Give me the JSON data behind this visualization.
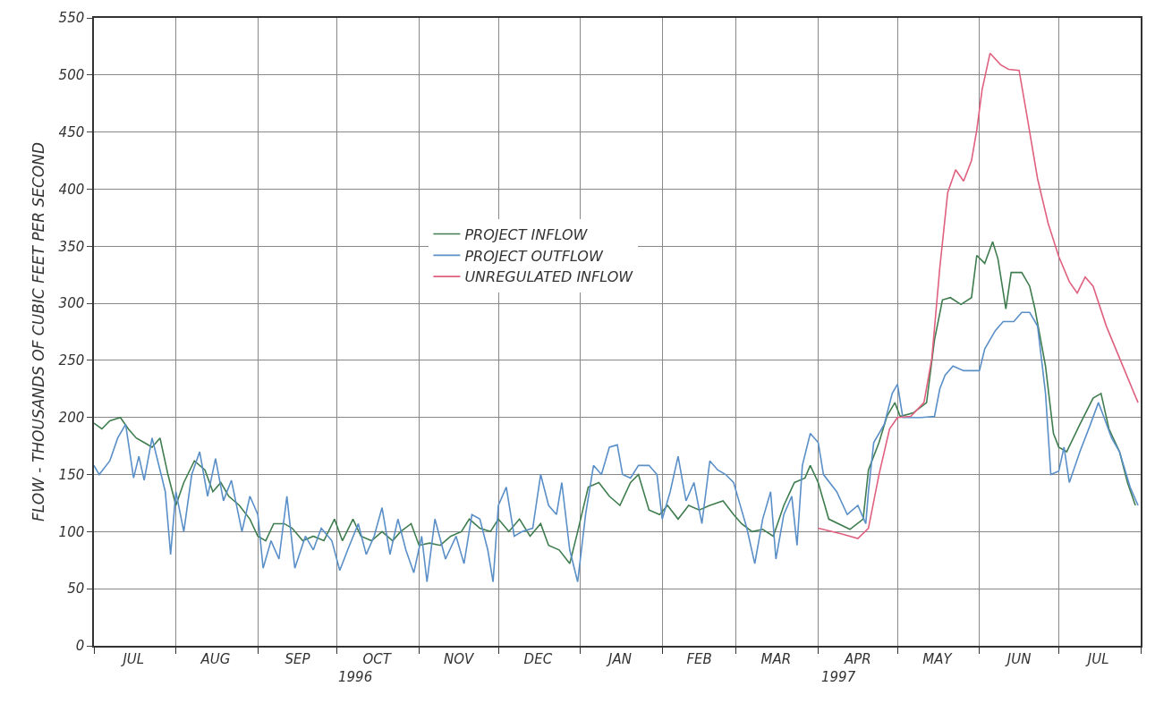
{
  "chart_data": {
    "type": "line",
    "ylabel": "FLOW - THOUSANDS OF CUBIC FEET PER SECOND",
    "xlim": [
      "1996-07-01",
      "1997-08-01"
    ],
    "ylim": [
      0,
      550
    ],
    "yticks": [
      0,
      50,
      100,
      150,
      200,
      250,
      300,
      350,
      400,
      450,
      500,
      550
    ],
    "xticks": [
      {
        "value": "1996-07-01",
        "label": null
      },
      {
        "value": "1996-07-16",
        "label": "JUL"
      },
      {
        "value": "1996-08-01",
        "label": null
      },
      {
        "value": "1996-08-16",
        "label": "AUG"
      },
      {
        "value": "1996-09-01",
        "label": null
      },
      {
        "value": "1996-09-16",
        "label": "SEP"
      },
      {
        "value": "1996-10-01",
        "label": null
      },
      {
        "value": "1996-10-16",
        "label": "OCT"
      },
      {
        "value": "1996-11-01",
        "label": null
      },
      {
        "value": "1996-11-16",
        "label": "NOV"
      },
      {
        "value": "1996-12-01",
        "label": null
      },
      {
        "value": "1996-12-16",
        "label": "DEC"
      },
      {
        "value": "1997-01-01",
        "label": null
      },
      {
        "value": "1997-01-16",
        "label": "JAN"
      },
      {
        "value": "1997-02-01",
        "label": null
      },
      {
        "value": "1997-02-15",
        "label": "FEB"
      },
      {
        "value": "1997-03-01",
        "label": null
      },
      {
        "value": "1997-03-16",
        "label": "MAR"
      },
      {
        "value": "1997-04-01",
        "label": null
      },
      {
        "value": "1997-04-16",
        "label": "APR"
      },
      {
        "value": "1997-05-01",
        "label": null
      },
      {
        "value": "1997-05-16",
        "label": "MAY"
      },
      {
        "value": "1997-06-01",
        "label": null
      },
      {
        "value": "1997-06-16",
        "label": "JUN"
      },
      {
        "value": "1997-07-01",
        "label": null
      },
      {
        "value": "1997-07-16",
        "label": "JUL"
      },
      {
        "value": "1997-08-01",
        "label": null
      }
    ],
    "annotations": [
      "1996",
      "1997"
    ],
    "grid": true,
    "legend": "center",
    "line_style": "solid",
    "marker": "none",
    "series": [
      {
        "name": "PROJECT INFLOW",
        "color": "#3f7d4f",
        "x": [
          "1996-07-01",
          "1996-07-04",
          "1996-07-07",
          "1996-07-11",
          "1996-07-14",
          "1996-07-17",
          "1996-07-20",
          "1996-07-23",
          "1996-07-26",
          "1996-07-29",
          "1996-08-01",
          "1996-08-04",
          "1996-08-08",
          "1996-08-12",
          "1996-08-15",
          "1996-08-18",
          "1996-08-21",
          "1996-08-25",
          "1996-08-29",
          "1996-09-01",
          "1996-09-04",
          "1996-09-07",
          "1996-09-11",
          "1996-09-14",
          "1996-09-18",
          "1996-09-22",
          "1996-09-26",
          "1996-09-30",
          "1996-10-03",
          "1996-10-07",
          "1996-10-10",
          "1996-10-14",
          "1996-10-18",
          "1996-10-22",
          "1996-10-25",
          "1996-10-29",
          "1996-11-01",
          "1996-11-05",
          "1996-11-09",
          "1996-11-13",
          "1996-11-17",
          "1996-11-20",
          "1996-11-24",
          "1996-11-28",
          "1996-12-01",
          "1996-12-05",
          "1996-12-09",
          "1996-12-13",
          "1996-12-17",
          "1996-12-20",
          "1996-12-24",
          "1996-12-28",
          "1996-12-31",
          "1997-01-04",
          "1997-01-08",
          "1997-01-12",
          "1997-01-16",
          "1997-01-20",
          "1997-01-23",
          "1997-01-27",
          "1997-01-31",
          "1997-02-03",
          "1997-02-07",
          "1997-02-11",
          "1997-02-15",
          "1997-02-19",
          "1997-02-24",
          "1997-02-28",
          "1997-03-03",
          "1997-03-07",
          "1997-03-11",
          "1997-03-15",
          "1997-03-19",
          "1997-03-23",
          "1997-03-27",
          "1997-03-29",
          "1997-04-01",
          "1997-04-05",
          "1997-04-13",
          "1997-04-18",
          "1997-04-20",
          "1997-04-24",
          "1997-04-27",
          "1997-04-30",
          "1997-05-02",
          "1997-05-07",
          "1997-05-12",
          "1997-05-15",
          "1997-05-18",
          "1997-05-21",
          "1997-05-25",
          "1997-05-29",
          "1997-05-31",
          "1997-06-03",
          "1997-06-06",
          "1997-06-08",
          "1997-06-11",
          "1997-06-13",
          "1997-06-17",
          "1997-06-20",
          "1997-06-22",
          "1997-06-26",
          "1997-06-29",
          "1997-07-01",
          "1997-07-04",
          "1997-07-09",
          "1997-07-14",
          "1997-07-17",
          "1997-07-20",
          "1997-07-24",
          "1997-07-27",
          "1997-07-30"
        ],
        "values": [
          195,
          190,
          197,
          200,
          190,
          182,
          178,
          174,
          182,
          150,
          123,
          143,
          162,
          154,
          135,
          143,
          131,
          123,
          111,
          96,
          92,
          107,
          107,
          103,
          92,
          96,
          92,
          111,
          92,
          111,
          96,
          92,
          100,
          92,
          100,
          107,
          88,
          90,
          88,
          96,
          100,
          111,
          103,
          100,
          111,
          100,
          111,
          96,
          107,
          88,
          84,
          72,
          100,
          139,
          143,
          131,
          123,
          143,
          150,
          119,
          115,
          123,
          111,
          123,
          119,
          123,
          127,
          115,
          107,
          100,
          102,
          96,
          123,
          143,
          147,
          158,
          143,
          111,
          102,
          111,
          154,
          178,
          201,
          213,
          201,
          204,
          213,
          268,
          303,
          305,
          299,
          305,
          342,
          335,
          354,
          339,
          295,
          327,
          327,
          315,
          295,
          245,
          186,
          174,
          170,
          194,
          217,
          221,
          190,
          170,
          143,
          123
        ]
      },
      {
        "name": "PROJECT OUTFLOW",
        "color": "#5a8fc8",
        "x": [
          "1996-07-01",
          "1996-07-03",
          "1996-07-07",
          "1996-07-10",
          "1996-07-13",
          "1996-07-16",
          "1996-07-18",
          "1996-07-20",
          "1996-07-23",
          "1996-07-26",
          "1996-07-28",
          "1996-07-30",
          "1996-08-01",
          "1996-08-04",
          "1996-08-07",
          "1996-08-10",
          "1996-08-13",
          "1996-08-16",
          "1996-08-19",
          "1996-08-22",
          "1996-08-26",
          "1996-08-29",
          "1996-09-01",
          "1996-09-03",
          "1996-09-06",
          "1996-09-09",
          "1996-09-12",
          "1996-09-15",
          "1996-09-19",
          "1996-09-22",
          "1996-09-25",
          "1996-09-29",
          "1996-10-02",
          "1996-10-05",
          "1996-10-09",
          "1996-10-12",
          "1996-10-15",
          "1996-10-18",
          "1996-10-21",
          "1996-10-24",
          "1996-10-27",
          "1996-10-30",
          "1996-11-02",
          "1996-11-04",
          "1996-11-07",
          "1996-11-11",
          "1996-11-15",
          "1996-11-18",
          "1996-11-21",
          "1996-11-24",
          "1996-11-27",
          "1996-11-29",
          "1996-12-01",
          "1996-12-04",
          "1996-12-07",
          "1996-12-10",
          "1996-12-14",
          "1996-12-17",
          "1996-12-20",
          "1996-12-23",
          "1996-12-25",
          "1996-12-28",
          "1996-12-31",
          "1997-01-03",
          "1997-01-06",
          "1997-01-09",
          "1997-01-12",
          "1997-01-15",
          "1997-01-17",
          "1997-01-20",
          "1997-01-23",
          "1997-01-27",
          "1997-01-30",
          "1997-02-01",
          "1997-02-04",
          "1997-02-07",
          "1997-02-10",
          "1997-02-13",
          "1997-02-16",
          "1997-02-19",
          "1997-02-22",
          "1997-02-25",
          "1997-02-28",
          "1997-03-02",
          "1997-03-05",
          "1997-03-08",
          "1997-03-11",
          "1997-03-14",
          "1997-03-16",
          "1997-03-19",
          "1997-03-22",
          "1997-03-24",
          "1997-03-26",
          "1997-03-29",
          "1997-04-01",
          "1997-04-03",
          "1997-04-08",
          "1997-04-12",
          "1997-04-16",
          "1997-04-19",
          "1997-04-20",
          "1997-04-22",
          "1997-04-26",
          "1997-04-29",
          "1997-05-01",
          "1997-05-03",
          "1997-05-10",
          "1997-05-15",
          "1997-05-17",
          "1997-05-19",
          "1997-05-22",
          "1997-05-26",
          "1997-06-01",
          "1997-06-03",
          "1997-06-07",
          "1997-06-10",
          "1997-06-14",
          "1997-06-17",
          "1997-06-20",
          "1997-06-23",
          "1997-06-26",
          "1997-06-28",
          "1997-07-01",
          "1997-07-03",
          "1997-07-05",
          "1997-07-09",
          "1997-07-13",
          "1997-07-16",
          "1997-07-18",
          "1997-07-21",
          "1997-07-24",
          "1997-07-28",
          "1997-07-31"
        ],
        "values": [
          158,
          150,
          162,
          182,
          194,
          147,
          166,
          145,
          182,
          154,
          135,
          80,
          135,
          100,
          150,
          170,
          131,
          164,
          127,
          145,
          100,
          131,
          115,
          68,
          92,
          76,
          131,
          68,
          96,
          84,
          103,
          92,
          66,
          84,
          107,
          80,
          96,
          121,
          80,
          111,
          84,
          64,
          96,
          56,
          111,
          76,
          96,
          72,
          115,
          111,
          84,
          56,
          123,
          139,
          96,
          100,
          103,
          150,
          123,
          115,
          143,
          84,
          56,
          115,
          158,
          150,
          174,
          176,
          150,
          147,
          158,
          158,
          150,
          111,
          135,
          166,
          127,
          143,
          107,
          162,
          154,
          150,
          143,
          127,
          103,
          72,
          111,
          135,
          76,
          115,
          131,
          88,
          158,
          186,
          178,
          150,
          135,
          115,
          123,
          107,
          135,
          178,
          194,
          221,
          229,
          200,
          200,
          201,
          225,
          237,
          245,
          241,
          241,
          260,
          276,
          284,
          284,
          292,
          292,
          280,
          221,
          150,
          153,
          174,
          143,
          170,
          194,
          213,
          201,
          182,
          170,
          139,
          123
        ]
      },
      {
        "name": "UNREGULATED INFLOW",
        "color": "#e0607f",
        "x": [
          "1997-04-01",
          "1997-04-10",
          "1997-04-16",
          "1997-04-20",
          "1997-04-24",
          "1997-04-28",
          "1997-05-01",
          "1997-05-06",
          "1997-05-11",
          "1997-05-14",
          "1997-05-17",
          "1997-05-20",
          "1997-05-23",
          "1997-05-26",
          "1997-05-29",
          "1997-05-31",
          "1997-06-02",
          "1997-06-05",
          "1997-06-09",
          "1997-06-12",
          "1997-06-16",
          "1997-06-19",
          "1997-06-23",
          "1997-06-27",
          "1997-07-01",
          "1997-07-05",
          "1997-07-08",
          "1997-07-11",
          "1997-07-14",
          "1997-07-19",
          "1997-07-24",
          "1997-07-31"
        ],
        "values": [
          103,
          98,
          94,
          103,
          150,
          190,
          200,
          201,
          213,
          252,
          331,
          397,
          417,
          407,
          425,
          452,
          487,
          519,
          509,
          505,
          504,
          464,
          409,
          370,
          341,
          319,
          309,
          323,
          315,
          280,
          252,
          213
        ]
      }
    ]
  }
}
